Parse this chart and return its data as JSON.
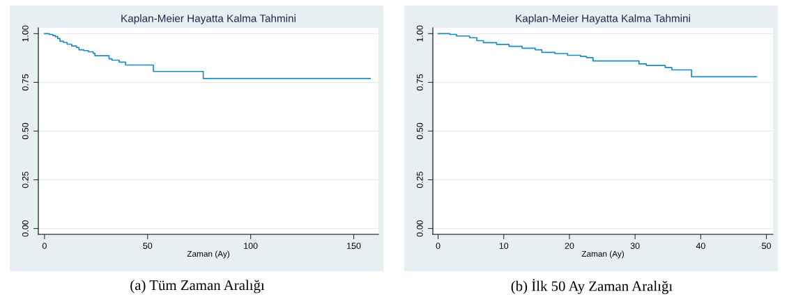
{
  "chart_data": [
    {
      "type": "step",
      "title": "Kaplan-Meier Hayatta Kalma Tahmini",
      "xlabel": "Zaman (Ay)",
      "annotations": [
        "(a) Tüm Zaman Aralığı"
      ],
      "x": [
        0,
        2.3,
        4.0,
        5.2,
        6.4,
        7.5,
        9.2,
        10.9,
        13.2,
        15.5,
        16.7,
        19,
        21.3,
        23.6,
        24.4,
        31.3,
        32.7,
        36.2,
        39.3,
        52.8,
        77,
        158
      ],
      "series": [
        {
          "color": "#1a8bc0",
          "values": [
            1.0,
            0.996,
            0.99,
            0.985,
            0.975,
            0.961,
            0.955,
            0.946,
            0.937,
            0.929,
            0.917,
            0.913,
            0.907,
            0.899,
            0.887,
            0.871,
            0.864,
            0.854,
            0.839,
            0.806,
            0.77,
            0.77
          ]
        }
      ],
      "xlim": [
        -3,
        162
      ],
      "xticks": [
        0,
        50,
        100,
        150
      ],
      "ylim": [
        -0.03,
        1.03
      ],
      "yticks": [
        {
          "value": 0,
          "label": "0.00"
        },
        {
          "value": 0.25,
          "label": "0.25"
        },
        {
          "value": 0.5,
          "label": "0.50"
        },
        {
          "value": 0.75,
          "label": "0.75"
        },
        {
          "value": 1,
          "label": "1.00"
        }
      ],
      "grid": "y",
      "line_style": "solid"
    },
    {
      "type": "step",
      "title": "Kaplan-Meier Hayatta Kalma Tahmini",
      "xlabel": "Zaman (Ay)",
      "annotations": [
        "(b) İlk 50 Ay Zaman Aralığı"
      ],
      "x": [
        0,
        1.8,
        2.8,
        4.8,
        5.9,
        6.9,
        8.9,
        10.8,
        12.8,
        14.8,
        15.8,
        17.8,
        19.7,
        21.7,
        22.6,
        23.6,
        30.6,
        31.7,
        34.6,
        35.6,
        38.6,
        48.5
      ],
      "series": [
        {
          "color": "#1a8bc0",
          "values": [
            1.0,
            0.996,
            0.988,
            0.979,
            0.964,
            0.954,
            0.945,
            0.935,
            0.925,
            0.917,
            0.904,
            0.898,
            0.889,
            0.883,
            0.877,
            0.86,
            0.845,
            0.837,
            0.826,
            0.814,
            0.779,
            0.779
          ]
        }
      ],
      "xlim": [
        -0.8,
        51
      ],
      "xticks": [
        0,
        10,
        20,
        30,
        40,
        50
      ],
      "ylim": [
        -0.03,
        1.03
      ],
      "yticks": [
        {
          "value": 0,
          "label": "0.00"
        },
        {
          "value": 0.25,
          "label": "0.25"
        },
        {
          "value": 0.5,
          "label": "0.50"
        },
        {
          "value": 0.75,
          "label": "0.75"
        },
        {
          "value": 1,
          "label": "1.00"
        }
      ],
      "grid": "y",
      "line_style": "solid"
    }
  ]
}
